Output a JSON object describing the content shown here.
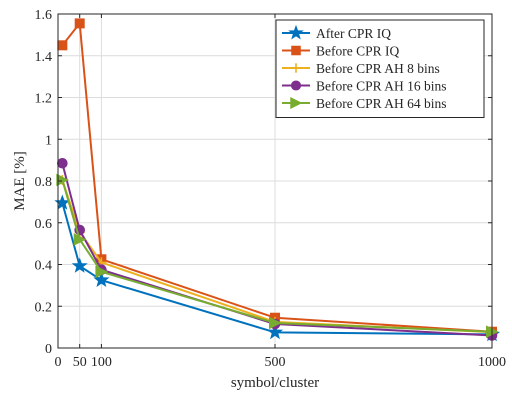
{
  "chart_data": {
    "type": "line",
    "title": "",
    "xlabel": "symbol/cluster",
    "ylabel": "MAE [%]",
    "xlim": [
      0,
      1000
    ],
    "ylim": [
      0,
      1.6
    ],
    "grid": true,
    "x_tick_values": [
      0,
      50,
      100,
      500,
      1000
    ],
    "x_tick_labels": [
      "0",
      "50",
      "100",
      "500",
      "1000"
    ],
    "y_tick_values": [
      0,
      0.2,
      0.4,
      0.6,
      0.8,
      1.0,
      1.2,
      1.4,
      1.6
    ],
    "y_tick_labels": [
      "0",
      "0.2",
      "0.4",
      "0.6",
      "0.8",
      "1",
      "1.2",
      "1.4",
      "1.6"
    ],
    "legend_position": "top-right",
    "x": [
      10,
      50,
      100,
      500,
      1000
    ],
    "series": [
      {
        "name": "After CPR IQ",
        "color": "#0072BD",
        "marker": "star",
        "values": [
          0.695,
          0.393,
          0.325,
          0.075,
          0.065
        ]
      },
      {
        "name": "Before CPR IQ",
        "color": "#D95319",
        "marker": "square",
        "values": [
          1.45,
          1.555,
          0.425,
          0.145,
          0.078
        ]
      },
      {
        "name": "Before CPR AH 8 bins",
        "color": "#EDB120",
        "marker": "plus",
        "values": [
          0.805,
          0.555,
          0.41,
          0.125,
          0.076
        ]
      },
      {
        "name": "Before CPR AH 16 bins",
        "color": "#7E2F8E",
        "marker": "circle",
        "values": [
          0.885,
          0.565,
          0.375,
          0.115,
          0.06
        ]
      },
      {
        "name": "Before CPR AH 64 bins",
        "color": "#77AC30",
        "marker": "triangle-right",
        "values": [
          0.805,
          0.52,
          0.365,
          0.12,
          0.078
        ]
      }
    ]
  }
}
